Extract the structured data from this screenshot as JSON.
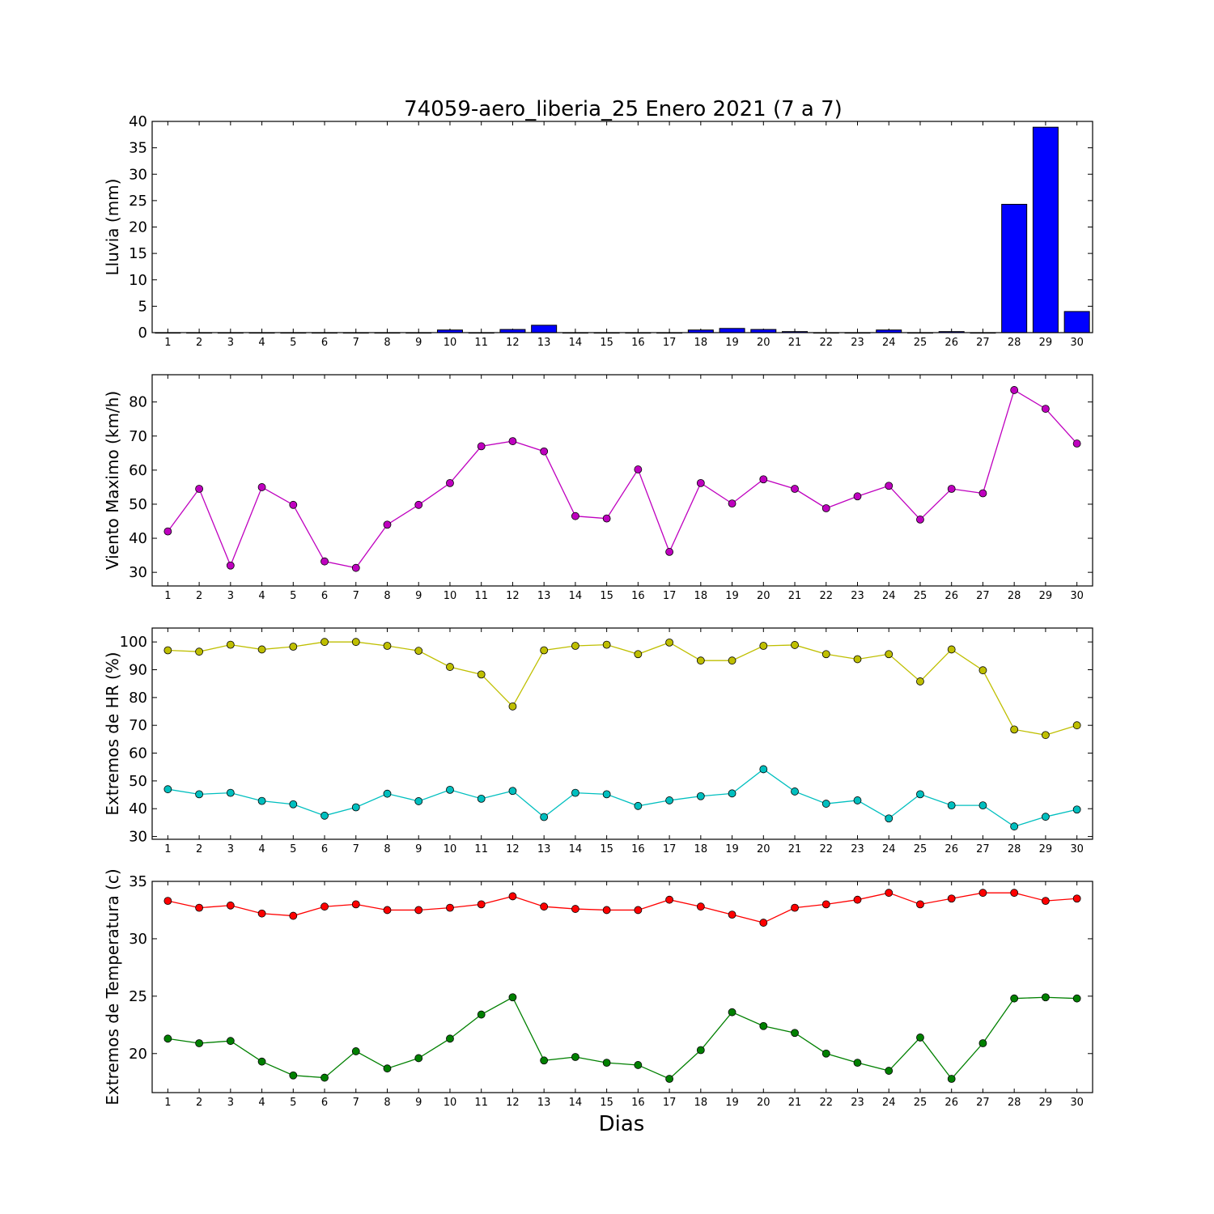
{
  "title": "74059-aero_liberia_25 Enero 2021  (7 a 7)",
  "xlabel": "Dias",
  "chart_data": [
    {
      "type": "bar",
      "ylabel": "Lluvia (mm)",
      "x": [
        1,
        2,
        3,
        4,
        5,
        6,
        7,
        8,
        9,
        10,
        11,
        12,
        13,
        14,
        15,
        16,
        17,
        18,
        19,
        20,
        21,
        22,
        23,
        24,
        25,
        26,
        27,
        28,
        29,
        30
      ],
      "ylim": [
        0,
        40
      ],
      "yticks": [
        0,
        5,
        10,
        15,
        20,
        25,
        30,
        35,
        40
      ],
      "series": [
        {
          "color": "#0000ff",
          "values": [
            0,
            0,
            0,
            0,
            0,
            0,
            0,
            0,
            0,
            0.5,
            0,
            0.6,
            1.4,
            0,
            0,
            0,
            0,
            0.5,
            0.8,
            0.6,
            0.2,
            0,
            0,
            0.5,
            0,
            0.2,
            0,
            24.3,
            38.9,
            4.0
          ]
        }
      ]
    },
    {
      "type": "line",
      "ylabel": "Viento Maximo (km/h)",
      "x": [
        1,
        2,
        3,
        4,
        5,
        6,
        7,
        8,
        9,
        10,
        11,
        12,
        13,
        14,
        15,
        16,
        17,
        18,
        19,
        20,
        21,
        22,
        23,
        24,
        25,
        26,
        27,
        28,
        29,
        30
      ],
      "ylim": [
        26,
        88
      ],
      "yticks": [
        30,
        40,
        50,
        60,
        70,
        80
      ],
      "series": [
        {
          "color": "#bf00bf",
          "values": [
            42,
            54.5,
            32,
            55,
            49.8,
            33.2,
            31.3,
            44,
            49.8,
            56.2,
            67,
            68.5,
            65.5,
            46.5,
            45.8,
            60.2,
            36,
            56.2,
            50.2,
            57.3,
            54.5,
            48.8,
            52.3,
            55.4,
            45.5,
            54.5,
            53.2,
            83.5,
            78,
            67.8
          ]
        }
      ]
    },
    {
      "type": "line",
      "ylabel": "Extremos de HR (%)",
      "x": [
        1,
        2,
        3,
        4,
        5,
        6,
        7,
        8,
        9,
        10,
        11,
        12,
        13,
        14,
        15,
        16,
        17,
        18,
        19,
        20,
        21,
        22,
        23,
        24,
        25,
        26,
        27,
        28,
        29,
        30
      ],
      "ylim": [
        29,
        105
      ],
      "yticks": [
        30,
        40,
        50,
        60,
        70,
        80,
        90,
        100
      ],
      "series": [
        {
          "color": "#bfbf00",
          "values": [
            97,
            96.5,
            99,
            97.3,
            98.3,
            100,
            100,
            98.6,
            96.8,
            91,
            88.3,
            76.8,
            97,
            98.6,
            99,
            95.6,
            99.8,
            93.3,
            93.3,
            98.6,
            98.9,
            95.6,
            93.8,
            95.6,
            85.8,
            97.3,
            89.8,
            68.5,
            66.5,
            70
          ]
        },
        {
          "color": "#00bfbf",
          "values": [
            47,
            45.2,
            45.7,
            42.8,
            41.6,
            37.5,
            40.5,
            45.4,
            42.7,
            46.8,
            43.6,
            46.4,
            37,
            45.7,
            45.2,
            41,
            43,
            44.5,
            45.5,
            54.2,
            46.2,
            41.8,
            43,
            36.5,
            45.2,
            41.2,
            41.2,
            33.6,
            37.1,
            39.7
          ]
        }
      ]
    },
    {
      "type": "line",
      "ylabel": "Extremos de Temperatura (c)",
      "x": [
        1,
        2,
        3,
        4,
        5,
        6,
        7,
        8,
        9,
        10,
        11,
        12,
        13,
        14,
        15,
        16,
        17,
        18,
        19,
        20,
        21,
        22,
        23,
        24,
        25,
        26,
        27,
        28,
        29,
        30
      ],
      "ylim": [
        16.6,
        35
      ],
      "yticks": [
        20,
        25,
        30,
        35
      ],
      "series": [
        {
          "color": "#ff0000",
          "values": [
            33.3,
            32.7,
            32.9,
            32.2,
            32,
            32.8,
            33,
            32.5,
            32.5,
            32.7,
            33,
            33.7,
            32.8,
            32.6,
            32.5,
            32.5,
            33.4,
            32.8,
            32.1,
            31.4,
            32.7,
            33,
            33.4,
            34,
            33,
            33.5,
            34,
            34,
            33.3,
            33.5
          ]
        },
        {
          "color": "#008000",
          "values": [
            21.3,
            20.9,
            21.1,
            19.3,
            18.1,
            17.9,
            20.2,
            18.7,
            19.6,
            21.3,
            23.4,
            24.9,
            19.4,
            19.7,
            19.2,
            19,
            17.8,
            20.3,
            23.6,
            22.4,
            21.8,
            20,
            19.2,
            18.5,
            21.4,
            17.8,
            20.9,
            24.8,
            24.9,
            24.8
          ]
        }
      ]
    }
  ]
}
